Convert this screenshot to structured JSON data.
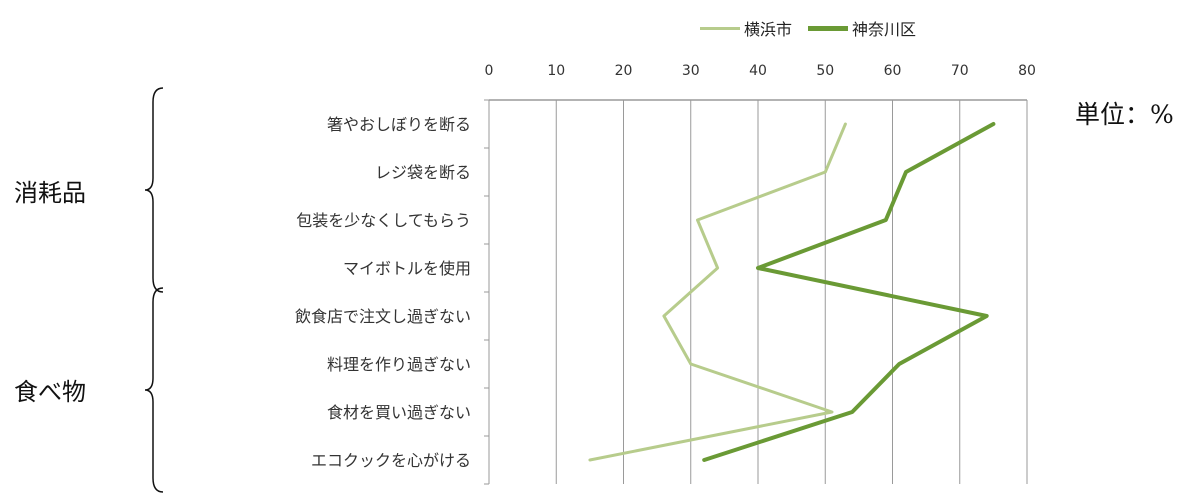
{
  "chart_data": {
    "type": "line",
    "orientation": "horizontal",
    "categories": [
      "箸やおしぼりを断る",
      "レジ袋を断る",
      "包装を少なくしてもらう",
      "マイボトルを使用",
      "飲食店で注文し過ぎない",
      "料理を作り過ぎない",
      "食材を買い過ぎない",
      "エコクックを心がける"
    ],
    "series": [
      {
        "name": "横浜市",
        "color": "#b7cc8c",
        "values": [
          53,
          50,
          31,
          34,
          26,
          30,
          51,
          15
        ]
      },
      {
        "name": "神奈川区",
        "color": "#6a9a35",
        "values": [
          75,
          62,
          59,
          40,
          74,
          61,
          54,
          32
        ]
      }
    ],
    "xaxis": {
      "min": 0,
      "max": 80,
      "ticks": [
        "0",
        "10",
        "20",
        "30",
        "40",
        "50",
        "60",
        "70",
        "80"
      ]
    },
    "grid": true,
    "legend_position": "top",
    "unit": "単位：%",
    "groups": [
      {
        "label": "消耗品",
        "rows": [
          0,
          3
        ]
      },
      {
        "label": "食べ物",
        "rows": [
          4,
          7
        ]
      }
    ]
  }
}
